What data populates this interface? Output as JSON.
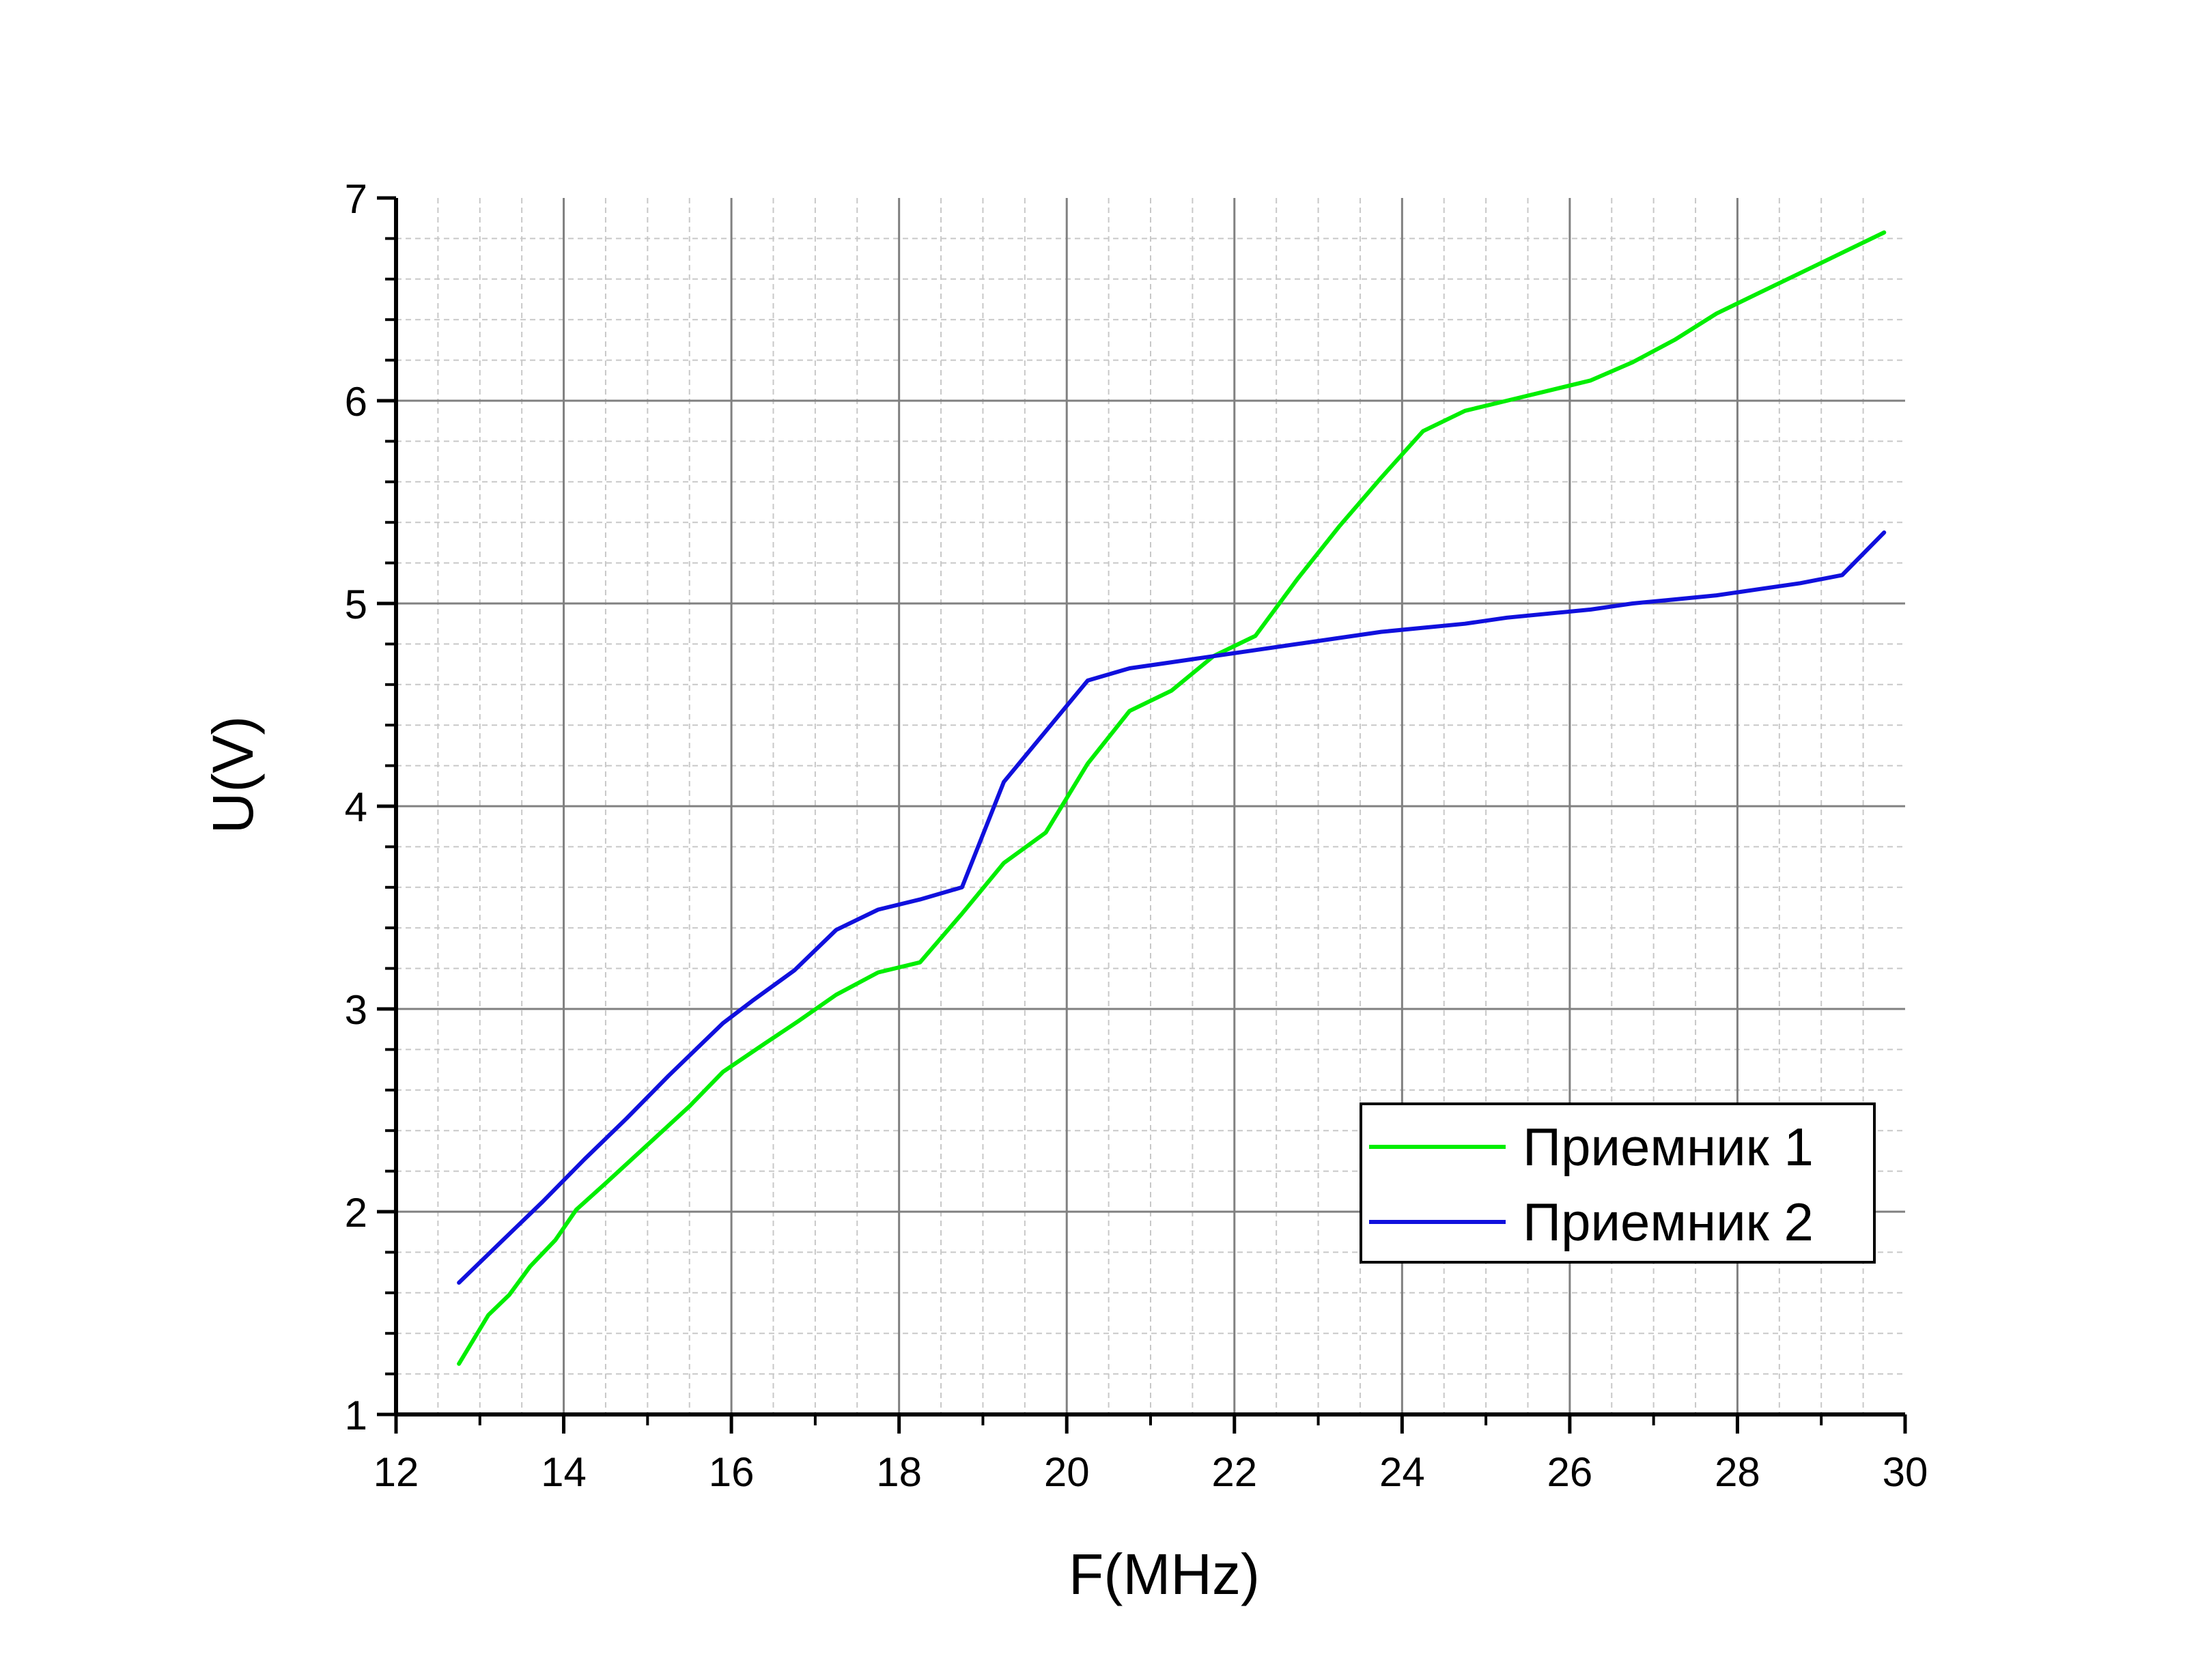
{
  "chart_data": {
    "type": "line",
    "xlabel": "F(MHz)",
    "ylabel": "U(V)",
    "xlim": [
      12,
      30
    ],
    "ylim": [
      1,
      7
    ],
    "xticks": [
      "12",
      "14",
      "16",
      "18",
      "20",
      "22",
      "24",
      "26",
      "28",
      "30"
    ],
    "yticks": [
      "1",
      "2",
      "3",
      "4",
      "5",
      "6",
      "7"
    ],
    "grid": true,
    "minor_grid": true,
    "legend_position": "bottom-right",
    "series": [
      {
        "name": "Приемник 1",
        "color": "#00ee00",
        "x": [
          12.75,
          13.1,
          13.35,
          13.6,
          13.9,
          14.15,
          14.5,
          15.0,
          15.5,
          15.9,
          16.4,
          16.8,
          17.25,
          17.75,
          18.25,
          18.75,
          19.25,
          19.75,
          20.25,
          20.75,
          21.25,
          21.75,
          22.25,
          22.75,
          23.25,
          23.75,
          24.25,
          24.75,
          25.25,
          25.75,
          26.25,
          26.75,
          27.25,
          27.75,
          28.25,
          28.75,
          29.25,
          29.75
        ],
        "y": [
          1.25,
          1.49,
          1.59,
          1.73,
          1.86,
          2.01,
          2.14,
          2.33,
          2.52,
          2.69,
          2.83,
          2.94,
          3.07,
          3.18,
          3.23,
          3.47,
          3.72,
          3.87,
          4.21,
          4.47,
          4.57,
          4.74,
          4.84,
          5.12,
          5.38,
          5.62,
          5.85,
          5.95,
          6.0,
          6.05,
          6.1,
          6.19,
          6.3,
          6.43,
          6.53,
          6.63,
          6.73,
          6.83
        ]
      },
      {
        "name": "Приемник 2",
        "color": "#1010dd",
        "x": [
          12.75,
          13.25,
          13.75,
          14.25,
          14.75,
          15.25,
          15.9,
          16.25,
          16.75,
          17.25,
          17.75,
          18.25,
          18.75,
          19.25,
          19.75,
          20.25,
          20.75,
          21.25,
          21.75,
          22.25,
          22.75,
          23.25,
          23.75,
          24.25,
          24.75,
          25.25,
          25.75,
          26.25,
          26.75,
          27.25,
          27.75,
          28.25,
          28.75,
          29.25,
          29.75
        ],
        "y": [
          1.65,
          1.85,
          2.05,
          2.26,
          2.46,
          2.67,
          2.93,
          3.04,
          3.19,
          3.39,
          3.49,
          3.54,
          3.6,
          4.12,
          4.37,
          4.62,
          4.68,
          4.71,
          4.74,
          4.77,
          4.8,
          4.83,
          4.86,
          4.88,
          4.9,
          4.93,
          4.95,
          4.97,
          5.0,
          5.02,
          5.04,
          5.07,
          5.1,
          5.14,
          5.35
        ]
      }
    ]
  }
}
